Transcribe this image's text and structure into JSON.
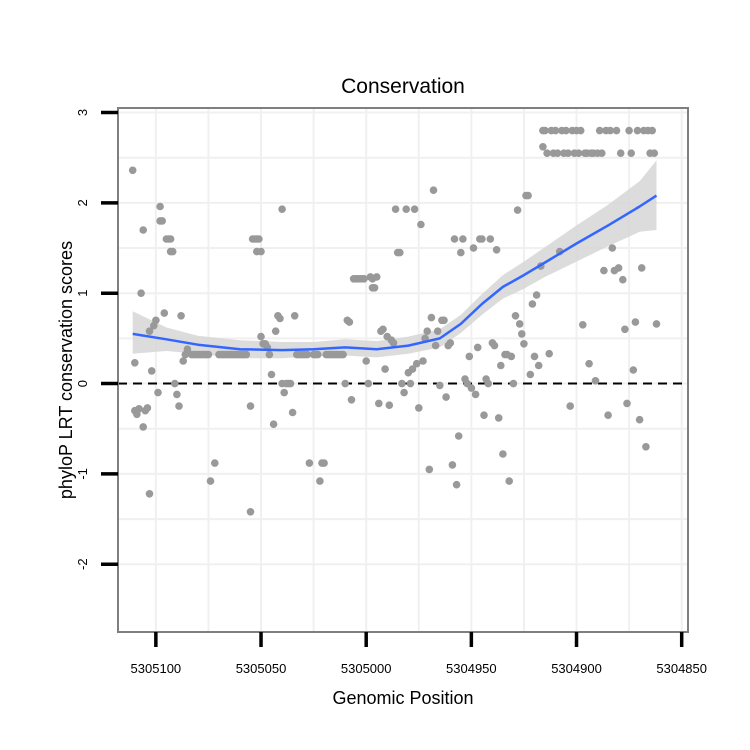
{
  "chart_data": {
    "type": "scatter",
    "title": "Conservation",
    "xlabel": "Genomic Position",
    "ylabel": "phyloP LRT conservation scores",
    "x_reversed": true,
    "xlim": [
      5305118,
      5304847
    ],
    "ylim": [
      -2.75,
      3.05
    ],
    "xticks": [
      5305100,
      5305050,
      5305000,
      5304950,
      5304900,
      5304850
    ],
    "xtick_labels": [
      "5305100",
      "5305050",
      "5305000",
      "5304950",
      "5304900",
      "5304850"
    ],
    "yticks": [
      -2,
      -1,
      0,
      1,
      2,
      3
    ],
    "ytick_labels": [
      "-2",
      "-1",
      "0",
      "1",
      "2",
      "3"
    ],
    "reference_line": {
      "y": 0,
      "style": "dashed",
      "color": "#000000"
    },
    "colors": {
      "points": "#999999",
      "smooth_line": "#3366FF",
      "confidence_band": "#d6d6d6",
      "panel_border": "#7f7f7f",
      "grid": "#f0f0f0"
    },
    "series": [
      {
        "name": "phyloP scores",
        "points": [
          [
            5305111,
            2.36
          ],
          [
            5305110,
            0.23
          ],
          [
            5305110,
            -0.3
          ],
          [
            5305109,
            -0.34
          ],
          [
            5305108,
            -0.28
          ],
          [
            5305107,
            1.0
          ],
          [
            5305106,
            1.7
          ],
          [
            5305106,
            -0.48
          ],
          [
            5305105,
            -0.3
          ],
          [
            5305104,
            -0.27
          ],
          [
            5305103,
            0.58
          ],
          [
            5305103,
            -1.22
          ],
          [
            5305102,
            0.14
          ],
          [
            5305101,
            0.64
          ],
          [
            5305100,
            0.7
          ],
          [
            5305099,
            -0.1
          ],
          [
            5305098,
            1.96
          ],
          [
            5305098,
            1.8
          ],
          [
            5305097,
            1.8
          ],
          [
            5305096,
            0.78
          ],
          [
            5305095,
            1.6
          ],
          [
            5305094,
            1.6
          ],
          [
            5305093,
            1.6
          ],
          [
            5305093,
            1.46
          ],
          [
            5305092,
            1.46
          ],
          [
            5305091,
            0.0
          ],
          [
            5305090,
            -0.12
          ],
          [
            5305089,
            -0.25
          ],
          [
            5305088,
            0.75
          ],
          [
            5305087,
            0.25
          ],
          [
            5305086,
            0.32
          ],
          [
            5305085,
            0.38
          ],
          [
            5305083,
            0.32
          ],
          [
            5305082,
            0.32
          ],
          [
            5305081,
            0.32
          ],
          [
            5305080,
            0.32
          ],
          [
            5305079,
            0.32
          ],
          [
            5305078,
            0.32
          ],
          [
            5305077,
            0.32
          ],
          [
            5305076,
            0.32
          ],
          [
            5305075,
            0.32
          ],
          [
            5305074,
            -1.08
          ],
          [
            5305072,
            -0.88
          ],
          [
            5305070,
            0.32
          ],
          [
            5305069,
            0.32
          ],
          [
            5305068,
            0.32
          ],
          [
            5305067,
            0.32
          ],
          [
            5305066,
            0.32
          ],
          [
            5305065,
            0.32
          ],
          [
            5305064,
            0.32
          ],
          [
            5305063,
            0.32
          ],
          [
            5305062,
            0.32
          ],
          [
            5305061,
            0.32
          ],
          [
            5305060,
            0.32
          ],
          [
            5305059,
            0.32
          ],
          [
            5305058,
            0.32
          ],
          [
            5305057,
            0.32
          ],
          [
            5305055,
            -0.25
          ],
          [
            5305055,
            -1.42
          ],
          [
            5305054,
            1.6
          ],
          [
            5305053,
            1.6
          ],
          [
            5305052,
            1.6
          ],
          [
            5305052,
            1.46
          ],
          [
            5305051,
            1.6
          ],
          [
            5305050,
            1.46
          ],
          [
            5305050,
            0.52
          ],
          [
            5305049,
            0.44
          ],
          [
            5305048,
            0.44
          ],
          [
            5305047,
            0.4
          ],
          [
            5305046,
            0.32
          ],
          [
            5305045,
            0.1
          ],
          [
            5305044,
            -0.45
          ],
          [
            5305043,
            0.58
          ],
          [
            5305042,
            0.75
          ],
          [
            5305041,
            0.72
          ],
          [
            5305040,
            1.93
          ],
          [
            5305040,
            0.0
          ],
          [
            5305039,
            -0.1
          ],
          [
            5305038,
            0.0
          ],
          [
            5305037,
            0.0
          ],
          [
            5305036,
            0.0
          ],
          [
            5305035,
            -0.32
          ],
          [
            5305034,
            0.75
          ],
          [
            5305033,
            0.32
          ],
          [
            5305032,
            0.32
          ],
          [
            5305031,
            0.32
          ],
          [
            5305030,
            0.32
          ],
          [
            5305029,
            0.32
          ],
          [
            5305028,
            0.32
          ],
          [
            5305027,
            -0.88
          ],
          [
            5305025,
            0.32
          ],
          [
            5305024,
            0.32
          ],
          [
            5305023,
            0.32
          ],
          [
            5305022,
            -1.08
          ],
          [
            5305021,
            -0.88
          ],
          [
            5305020,
            -0.88
          ],
          [
            5305019,
            0.32
          ],
          [
            5305018,
            0.32
          ],
          [
            5305017,
            0.32
          ],
          [
            5305016,
            0.32
          ],
          [
            5305015,
            0.32
          ],
          [
            5305014,
            0.32
          ],
          [
            5305013,
            0.32
          ],
          [
            5305012,
            0.32
          ],
          [
            5305011,
            0.32
          ],
          [
            5305010,
            0.0
          ],
          [
            5305009,
            0.7
          ],
          [
            5305008,
            0.68
          ],
          [
            5305007,
            -0.18
          ],
          [
            5305006,
            1.16
          ],
          [
            5305005,
            1.16
          ],
          [
            5305004,
            1.16
          ],
          [
            5305003,
            1.16
          ],
          [
            5305002,
            1.16
          ],
          [
            5305001,
            1.16
          ],
          [
            5305000,
            0.25
          ],
          [
            5304999,
            0.0
          ],
          [
            5304998,
            1.18
          ],
          [
            5304997,
            1.16
          ],
          [
            5304997,
            1.06
          ],
          [
            5304996,
            1.06
          ],
          [
            5304995,
            1.18
          ],
          [
            5304994,
            -0.22
          ],
          [
            5304993,
            0.58
          ],
          [
            5304992,
            0.6
          ],
          [
            5304991,
            0.16
          ],
          [
            5304990,
            0.52
          ],
          [
            5304989,
            -0.24
          ],
          [
            5304988,
            0.48
          ],
          [
            5304987,
            0.45
          ],
          [
            5304986,
            1.93
          ],
          [
            5304985,
            1.45
          ],
          [
            5304984,
            1.45
          ],
          [
            5304983,
            0.0
          ],
          [
            5304982,
            -0.1
          ],
          [
            5304981,
            1.93
          ],
          [
            5304980,
            0.12
          ],
          [
            5304979,
            0.0
          ],
          [
            5304978,
            0.16
          ],
          [
            5304977,
            1.93
          ],
          [
            5304976,
            0.22
          ],
          [
            5304975,
            -0.27
          ],
          [
            5304974,
            1.76
          ],
          [
            5304973,
            0.25
          ],
          [
            5304972,
            0.5
          ],
          [
            5304971,
            0.58
          ],
          [
            5304970,
            -0.95
          ],
          [
            5304969,
            0.73
          ],
          [
            5304968,
            2.14
          ],
          [
            5304967,
            0.42
          ],
          [
            5304966,
            0.58
          ],
          [
            5304965,
            -0.02
          ],
          [
            5304964,
            0.7
          ],
          [
            5304963,
            0.7
          ],
          [
            5304962,
            -0.15
          ],
          [
            5304961,
            0.42
          ],
          [
            5304960,
            0.45
          ],
          [
            5304959,
            -0.9
          ],
          [
            5304958,
            1.6
          ],
          [
            5304957,
            -1.12
          ],
          [
            5304956,
            -0.58
          ],
          [
            5304955,
            1.45
          ],
          [
            5304954,
            1.6
          ],
          [
            5304953,
            0.05
          ],
          [
            5304952,
            0.0
          ],
          [
            5304951,
            0.3
          ],
          [
            5304950,
            -0.05
          ],
          [
            5304949,
            1.5
          ],
          [
            5304948,
            -0.12
          ],
          [
            5304947,
            0.4
          ],
          [
            5304946,
            1.6
          ],
          [
            5304945,
            1.6
          ],
          [
            5304944,
            -0.35
          ],
          [
            5304943,
            0.05
          ],
          [
            5304942,
            0.0
          ],
          [
            5304941,
            1.6
          ],
          [
            5304940,
            0.45
          ],
          [
            5304939,
            0.42
          ],
          [
            5304938,
            1.48
          ],
          [
            5304937,
            -0.38
          ],
          [
            5304936,
            0.2
          ],
          [
            5304935,
            -0.78
          ],
          [
            5304934,
            0.32
          ],
          [
            5304933,
            0.32
          ],
          [
            5304932,
            -1.08
          ],
          [
            5304931,
            0.3
          ],
          [
            5304930,
            0.0
          ],
          [
            5304929,
            0.75
          ],
          [
            5304928,
            1.92
          ],
          [
            5304927,
            0.66
          ],
          [
            5304926,
            0.55
          ],
          [
            5304925,
            0.44
          ],
          [
            5304924,
            2.08
          ],
          [
            5304923,
            2.08
          ],
          [
            5304922,
            0.1
          ],
          [
            5304921,
            0.88
          ],
          [
            5304920,
            0.3
          ],
          [
            5304919,
            0.98
          ],
          [
            5304918,
            0.2
          ],
          [
            5304917,
            1.3
          ],
          [
            5304916,
            2.62
          ],
          [
            5304916,
            2.8
          ],
          [
            5304915,
            2.8
          ],
          [
            5304914,
            2.55
          ],
          [
            5304913,
            0.33
          ],
          [
            5304912,
            2.8
          ],
          [
            5304911,
            2.55
          ],
          [
            5304910,
            2.8
          ],
          [
            5304909,
            2.55
          ],
          [
            5304908,
            1.46
          ],
          [
            5304907,
            2.8
          ],
          [
            5304906,
            2.55
          ],
          [
            5304905,
            2.8
          ],
          [
            5304904,
            2.55
          ],
          [
            5304903,
            -0.25
          ],
          [
            5304902,
            2.8
          ],
          [
            5304901,
            2.55
          ],
          [
            5304900,
            2.8
          ],
          [
            5304899,
            2.55
          ],
          [
            5304898,
            2.8
          ],
          [
            5304897,
            0.65
          ],
          [
            5304896,
            2.55
          ],
          [
            5304895,
            2.55
          ],
          [
            5304894,
            0.22
          ],
          [
            5304893,
            2.55
          ],
          [
            5304892,
            2.55
          ],
          [
            5304891,
            0.03
          ],
          [
            5304890,
            2.55
          ],
          [
            5304889,
            2.8
          ],
          [
            5304888,
            2.55
          ],
          [
            5304887,
            1.25
          ],
          [
            5304886,
            2.8
          ],
          [
            5304885,
            -0.35
          ],
          [
            5304884,
            2.8
          ],
          [
            5304883,
            1.5
          ],
          [
            5304882,
            1.25
          ],
          [
            5304881,
            2.8
          ],
          [
            5304880,
            1.28
          ],
          [
            5304879,
            2.55
          ],
          [
            5304878,
            1.15
          ],
          [
            5304877,
            0.6
          ],
          [
            5304876,
            -0.22
          ],
          [
            5304875,
            2.8
          ],
          [
            5304874,
            2.55
          ],
          [
            5304873,
            0.15
          ],
          [
            5304872,
            0.68
          ],
          [
            5304871,
            2.8
          ],
          [
            5304870,
            -0.4
          ],
          [
            5304869,
            1.28
          ],
          [
            5304868,
            2.8
          ],
          [
            5304867,
            -0.7
          ],
          [
            5304866,
            2.8
          ],
          [
            5304865,
            2.55
          ],
          [
            5304864,
            2.8
          ],
          [
            5304863,
            2.55
          ],
          [
            5304862,
            0.66
          ]
        ]
      },
      {
        "name": "loess fit",
        "type": "line",
        "x": [
          5305111,
          5305095,
          5305080,
          5305060,
          5305040,
          5305025,
          5305010,
          5304995,
          5304980,
          5304965,
          5304955,
          5304945,
          5304935,
          5304925,
          5304915,
          5304900,
          5304885,
          5304870,
          5304862
        ],
        "y": [
          0.55,
          0.49,
          0.43,
          0.38,
          0.37,
          0.38,
          0.4,
          0.38,
          0.42,
          0.5,
          0.66,
          0.88,
          1.07,
          1.2,
          1.34,
          1.55,
          1.75,
          1.96,
          2.08
        ],
        "lower": [
          0.33,
          0.36,
          0.33,
          0.28,
          0.28,
          0.3,
          0.31,
          0.29,
          0.33,
          0.4,
          0.56,
          0.76,
          0.94,
          1.05,
          1.18,
          1.35,
          1.52,
          1.68,
          1.7
        ],
        "upper": [
          0.8,
          0.62,
          0.53,
          0.48,
          0.46,
          0.46,
          0.49,
          0.47,
          0.52,
          0.6,
          0.76,
          0.99,
          1.2,
          1.35,
          1.51,
          1.75,
          1.98,
          2.24,
          2.47
        ]
      }
    ]
  }
}
